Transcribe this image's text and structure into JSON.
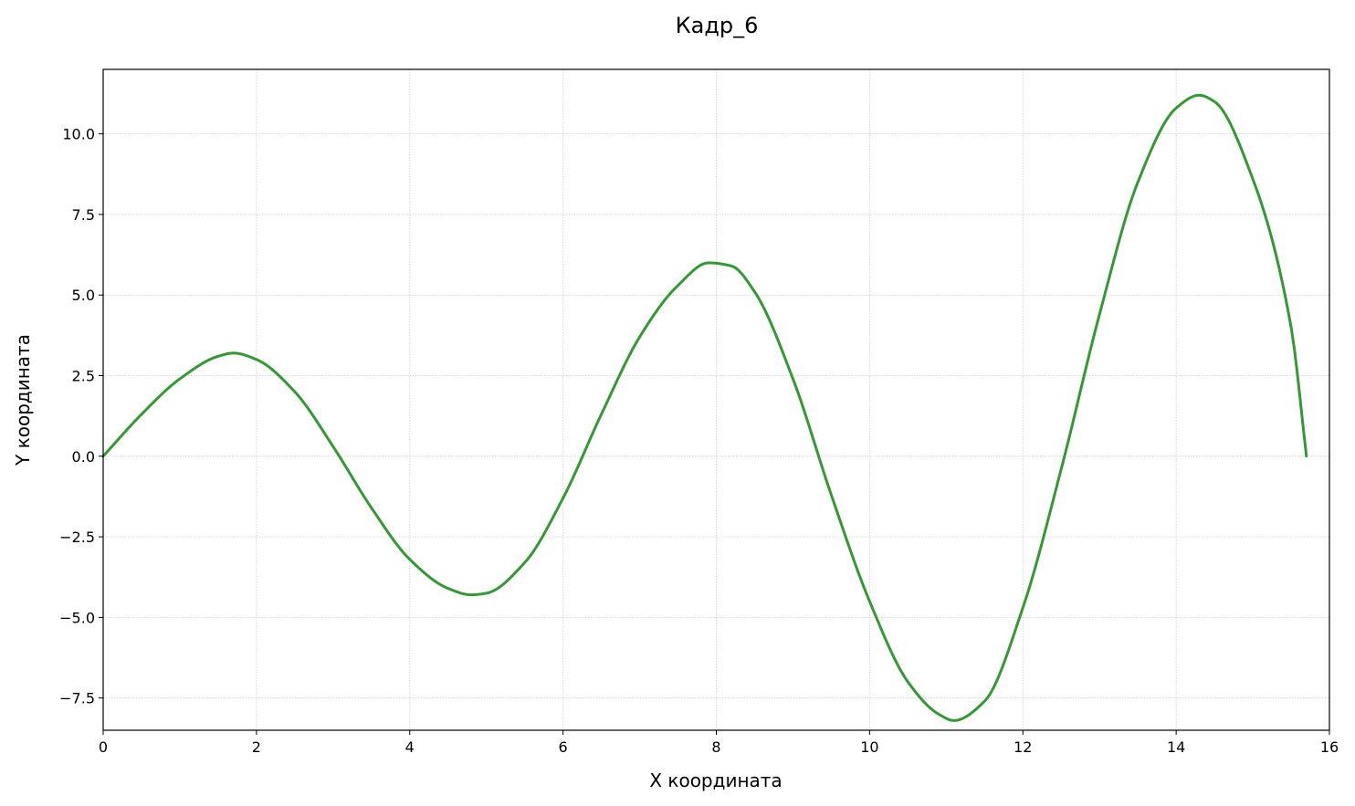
{
  "chart_data": {
    "type": "line",
    "title": "Кадр_6",
    "xlabel": "X координата",
    "ylabel": "Y координата",
    "xlim": [
      0,
      16
    ],
    "ylim": [
      -8.5,
      12
    ],
    "xticks": [
      0,
      2,
      4,
      6,
      8,
      10,
      12,
      14,
      16
    ],
    "xtick_labels": [
      "0",
      "2",
      "4",
      "6",
      "8",
      "10",
      "12",
      "14",
      "16"
    ],
    "yticks": [
      -7.5,
      -5.0,
      -2.5,
      0.0,
      2.5,
      5.0,
      7.5,
      10.0
    ],
    "ytick_labels": [
      "−7.5",
      "−5.0",
      "−2.5",
      "0.0",
      "2.5",
      "5.0",
      "7.5",
      "10.0"
    ],
    "grid": true,
    "series": [
      {
        "color": "#339933",
        "x": [
          0,
          0.5,
          1.0,
          1.5,
          1.7,
          2.0,
          2.5,
          3.0,
          3.5,
          4.0,
          4.5,
          4.8,
          5.0,
          5.5,
          6.0,
          6.5,
          7.0,
          7.5,
          7.9,
          8.2,
          8.5,
          9.0,
          9.5,
          10.0,
          10.5,
          10.9,
          11.1,
          11.5,
          12.0,
          12.5,
          13.0,
          13.5,
          14.0,
          14.3,
          14.5,
          15.0,
          15.5,
          15.7
        ],
        "y": [
          0,
          1.3,
          2.4,
          3.1,
          3.2,
          3.0,
          2.0,
          0.3,
          -1.6,
          -3.2,
          -4.1,
          -4.3,
          -4.25,
          -3.3,
          -1.3,
          1.3,
          3.7,
          5.3,
          6.0,
          5.9,
          5.1,
          2.4,
          -1.2,
          -4.5,
          -7.0,
          -8.0,
          -8.2,
          -7.6,
          -4.7,
          -0.4,
          4.4,
          8.5,
          10.8,
          11.2,
          11.0,
          8.6,
          4.0,
          0.0
        ]
      }
    ]
  }
}
